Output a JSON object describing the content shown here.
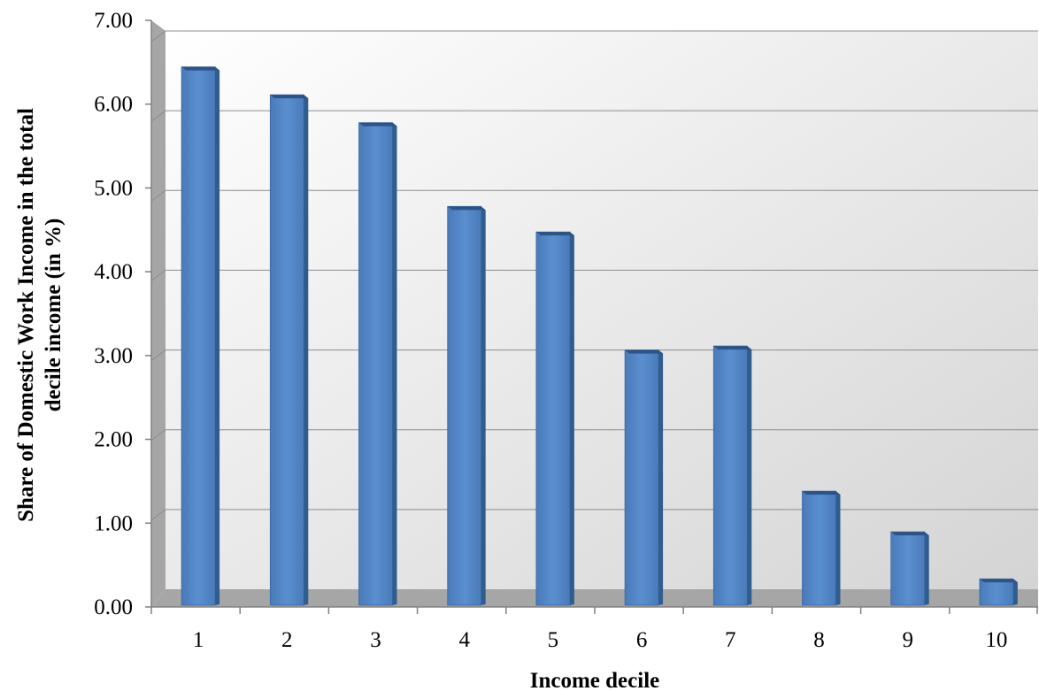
{
  "chart_data": {
    "type": "bar",
    "title": "",
    "xlabel": "Income decile",
    "ylabel_lines": [
      "Share of Domestic Work Income in the total",
      "decile income (in %)"
    ],
    "categories": [
      "1",
      "2",
      "3",
      "4",
      "5",
      "6",
      "7",
      "8",
      "9",
      "10"
    ],
    "values": [
      6.55,
      6.2,
      5.85,
      4.8,
      4.48,
      3.0,
      3.05,
      1.23,
      0.72,
      0.13
    ],
    "ylim": [
      0,
      7
    ],
    "yticks": [
      "0.00",
      "1.00",
      "2.00",
      "3.00",
      "4.00",
      "5.00",
      "6.00",
      "7.00"
    ],
    "grid": true,
    "legend": "none",
    "bar_color": "#4f81bd",
    "bar_dark_color": "#2f5d8f"
  }
}
